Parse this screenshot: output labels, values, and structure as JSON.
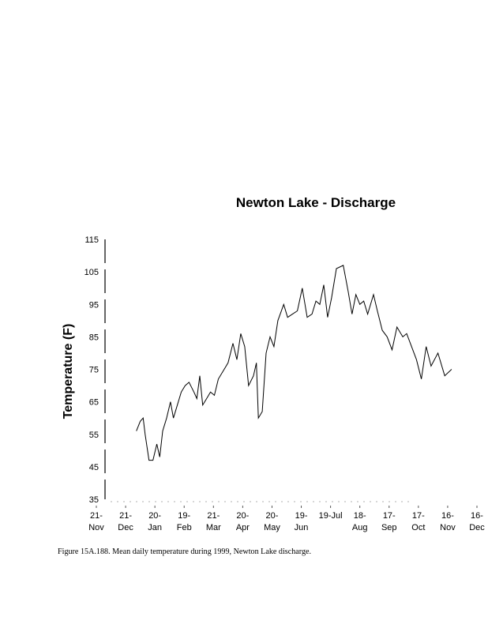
{
  "chart_data": {
    "type": "line",
    "title": "Newton Lake - Discharge",
    "xlabel": "",
    "ylabel": "Temperature (F)",
    "caption": "Figure 15A.188. Mean daily temperature during 1999, Newton Lake discharge.",
    "ylim": [
      35,
      115
    ],
    "yticks": [
      35,
      45,
      55,
      65,
      75,
      85,
      95,
      105,
      115
    ],
    "xlim_days": [
      0,
      390
    ],
    "xticks": [
      {
        "day": 0,
        "label": [
          "21-",
          "Nov"
        ]
      },
      {
        "day": 30,
        "label": [
          "21-",
          "Dec"
        ]
      },
      {
        "day": 60,
        "label": [
          "20-",
          "Jan"
        ]
      },
      {
        "day": 90,
        "label": [
          "19-",
          "Feb"
        ]
      },
      {
        "day": 120,
        "label": [
          "21-",
          "Mar"
        ]
      },
      {
        "day": 150,
        "label": [
          "20-",
          "Apr"
        ]
      },
      {
        "day": 180,
        "label": [
          "20-",
          "May"
        ]
      },
      {
        "day": 210,
        "label": [
          "19-",
          "Jun"
        ]
      },
      {
        "day": 240,
        "label": [
          "19-Jul",
          ""
        ]
      },
      {
        "day": 270,
        "label": [
          "18-",
          "Aug"
        ]
      },
      {
        "day": 300,
        "label": [
          "17-",
          "Sep"
        ]
      },
      {
        "day": 330,
        "label": [
          "17-",
          "Oct"
        ]
      },
      {
        "day": 360,
        "label": [
          "16-",
          "Nov"
        ]
      },
      {
        "day": 390,
        "label": [
          "16-",
          "Dec"
        ]
      }
    ],
    "grid": false,
    "series": [
      {
        "name": "Mean daily temperature",
        "x": [
          41,
          45,
          48,
          50,
          54,
          58,
          62,
          65,
          68,
          72,
          76,
          79,
          83,
          87,
          91,
          95,
          100,
          103,
          106,
          109,
          113,
          117,
          121,
          125,
          131,
          135,
          140,
          144,
          148,
          152,
          156,
          161,
          164,
          166,
          170,
          174,
          178,
          182,
          186,
          192,
          196,
          201,
          206,
          211,
          216,
          221,
          225,
          229,
          233,
          237,
          241,
          246,
          253,
          258,
          262,
          266,
          270,
          274,
          278,
          284,
          288,
          293,
          298,
          303,
          308,
          314,
          318,
          323,
          328,
          333,
          338,
          343,
          350,
          357,
          364
        ],
        "y": [
          56,
          59,
          60,
          55,
          47,
          47,
          52,
          48,
          56,
          60,
          65,
          60,
          64,
          68,
          70,
          71,
          68,
          66,
          73,
          64,
          66,
          68,
          67,
          72,
          75,
          77,
          83,
          78,
          86,
          82,
          70,
          73,
          77,
          60,
          62,
          80,
          85,
          82,
          90,
          95,
          91,
          92,
          93,
          100,
          91,
          92,
          96,
          95,
          101,
          91,
          97,
          106,
          107,
          99,
          92,
          98,
          95,
          96,
          92,
          98,
          93,
          87,
          85,
          81,
          88,
          85,
          86,
          82,
          78,
          72,
          82,
          76,
          80,
          73,
          75
        ]
      }
    ]
  }
}
